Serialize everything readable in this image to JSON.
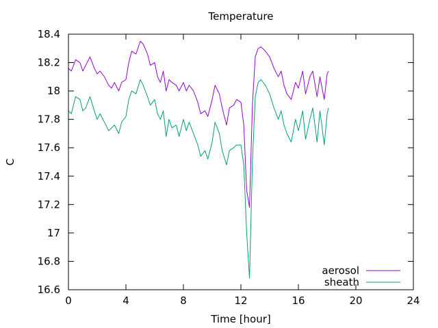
{
  "chart_data": {
    "type": "line",
    "title": "Temperature",
    "xlabel": "Time [hour]",
    "ylabel": "C",
    "xlim": [
      0,
      24
    ],
    "ylim": [
      16.6,
      18.4
    ],
    "xticks": [
      0,
      4,
      8,
      12,
      16,
      20,
      24
    ],
    "yticks": [
      16.6,
      16.8,
      17.0,
      17.2,
      17.4,
      17.6,
      17.8,
      18.0,
      18.2,
      18.4
    ],
    "ytick_labels": [
      "16.6",
      "16.8",
      "17",
      "17.2",
      "17.4",
      "17.6",
      "17.8",
      "18",
      "18.2",
      "18.4"
    ],
    "grid": false,
    "legend_position": "bottom-right",
    "series": [
      {
        "name": "aerosol",
        "color": "#9400d3",
        "x": [
          0,
          0.2,
          0.5,
          0.8,
          1.0,
          1.2,
          1.5,
          1.8,
          2.0,
          2.2,
          2.5,
          2.8,
          3.0,
          3.2,
          3.5,
          3.7,
          4.0,
          4.2,
          4.4,
          4.7,
          5.0,
          5.2,
          5.5,
          5.7,
          6.0,
          6.2,
          6.4,
          6.6,
          6.8,
          7.0,
          7.2,
          7.5,
          7.7,
          8.0,
          8.2,
          8.4,
          8.7,
          9.0,
          9.2,
          9.5,
          9.7,
          10.0,
          10.2,
          10.5,
          10.7,
          11.0,
          11.2,
          11.5,
          11.7,
          12.0,
          12.2,
          12.4,
          12.6,
          12.8,
          13.0,
          13.2,
          13.4,
          13.7,
          14.0,
          14.3,
          14.6,
          14.8,
          15.0,
          15.2,
          15.5,
          15.8,
          16.0,
          16.3,
          16.5,
          16.8,
          17.0,
          17.3,
          17.5,
          17.8,
          18.0,
          18.1
        ],
        "y": [
          18.16,
          18.14,
          18.22,
          18.2,
          18.14,
          18.18,
          18.24,
          18.16,
          18.12,
          18.14,
          18.1,
          18.04,
          18.02,
          18.06,
          18.0,
          18.06,
          18.08,
          18.2,
          18.28,
          18.26,
          18.35,
          18.33,
          18.26,
          18.18,
          18.2,
          18.1,
          18.06,
          18.14,
          18.0,
          18.08,
          18.06,
          18.04,
          18.0,
          18.06,
          18.0,
          18.04,
          18.0,
          17.92,
          17.84,
          17.86,
          17.82,
          17.94,
          18.04,
          17.98,
          17.88,
          17.76,
          17.88,
          17.9,
          17.94,
          17.92,
          17.76,
          17.3,
          17.18,
          17.9,
          18.24,
          18.3,
          18.31,
          18.28,
          18.24,
          18.16,
          18.1,
          18.14,
          18.04,
          17.98,
          17.94,
          18.06,
          18.02,
          18.14,
          17.98,
          18.1,
          18.14,
          17.96,
          18.1,
          17.94,
          18.12,
          18.14
        ]
      },
      {
        "name": "sheath",
        "color": "#009e73",
        "x": [
          0,
          0.2,
          0.5,
          0.8,
          1.0,
          1.2,
          1.5,
          1.8,
          2.0,
          2.2,
          2.5,
          2.8,
          3.0,
          3.2,
          3.5,
          3.7,
          4.0,
          4.2,
          4.4,
          4.7,
          5.0,
          5.2,
          5.5,
          5.7,
          6.0,
          6.2,
          6.4,
          6.6,
          6.8,
          7.0,
          7.2,
          7.5,
          7.7,
          8.0,
          8.2,
          8.4,
          8.7,
          9.0,
          9.2,
          9.5,
          9.7,
          10.0,
          10.2,
          10.5,
          10.7,
          11.0,
          11.2,
          11.5,
          11.7,
          12.0,
          12.2,
          12.4,
          12.6,
          12.8,
          13.0,
          13.2,
          13.4,
          13.7,
          14.0,
          14.3,
          14.6,
          14.8,
          15.0,
          15.2,
          15.5,
          15.8,
          16.0,
          16.3,
          16.5,
          16.8,
          17.0,
          17.3,
          17.5,
          17.8,
          18.0,
          18.1
        ],
        "y": [
          17.86,
          17.84,
          17.96,
          17.94,
          17.86,
          17.88,
          17.96,
          17.86,
          17.8,
          17.84,
          17.78,
          17.72,
          17.74,
          17.76,
          17.7,
          17.78,
          17.82,
          17.94,
          18.0,
          17.98,
          18.08,
          18.04,
          17.96,
          17.9,
          17.94,
          17.84,
          17.8,
          17.86,
          17.68,
          17.8,
          17.74,
          17.76,
          17.68,
          17.8,
          17.72,
          17.78,
          17.7,
          17.62,
          17.54,
          17.58,
          17.52,
          17.64,
          17.78,
          17.7,
          17.58,
          17.48,
          17.58,
          17.6,
          17.62,
          17.62,
          17.48,
          17.0,
          16.68,
          17.5,
          17.96,
          18.06,
          18.08,
          18.04,
          17.98,
          17.88,
          17.8,
          17.86,
          17.76,
          17.7,
          17.64,
          17.8,
          17.72,
          17.86,
          17.66,
          17.8,
          17.88,
          17.64,
          17.86,
          17.62,
          17.84,
          17.88
        ]
      }
    ]
  }
}
